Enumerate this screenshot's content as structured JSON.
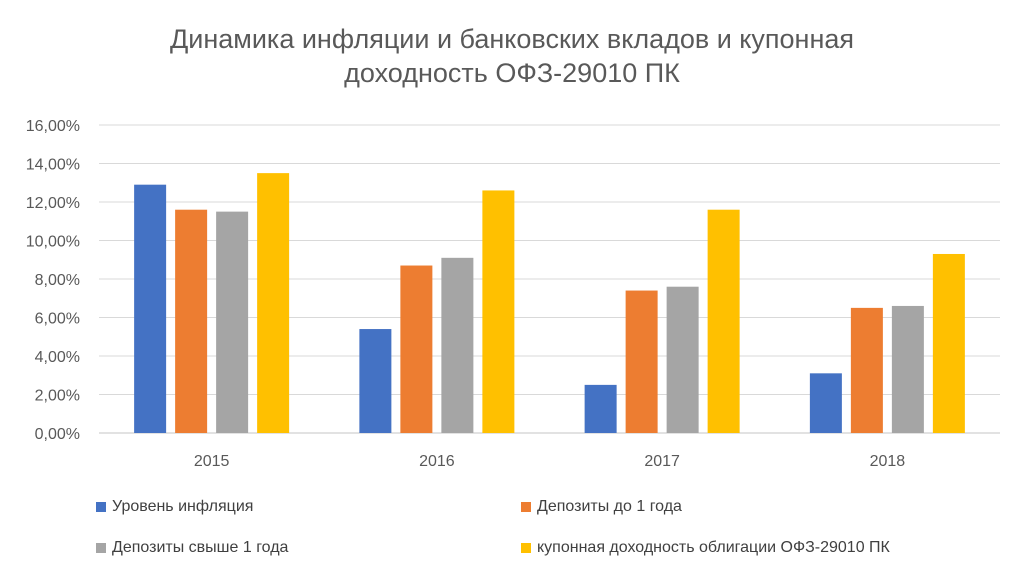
{
  "chart_data": {
    "type": "bar",
    "title": "Динамика инфляции и банковских вкладов и купонная доходность ОФЗ-29010 ПК",
    "title_lines": [
      "Динамика инфляции и банковских вкладов и купонная",
      "доходность ОФЗ-29010 ПК"
    ],
    "xlabel": "",
    "ylabel": "",
    "categories": [
      "2015",
      "2016",
      "2017",
      "2018"
    ],
    "ylim": [
      0,
      16
    ],
    "yticks": [
      "0,00%",
      "2,00%",
      "4,00%",
      "6,00%",
      "8,00%",
      "10,00%",
      "12,00%",
      "14,00%",
      "16,00%"
    ],
    "grid": true,
    "legend_position": "bottom",
    "series": [
      {
        "name": "Уровень инфляция",
        "color": "#4472C4",
        "values": [
          12.9,
          5.4,
          2.5,
          3.1
        ]
      },
      {
        "name": "Депозиты до 1 года",
        "color": "#ED7D31",
        "values": [
          11.6,
          8.7,
          7.4,
          6.5
        ]
      },
      {
        "name": "Депозиты свыше 1 года",
        "color": "#A5A5A5",
        "values": [
          11.5,
          9.1,
          7.6,
          6.6
        ]
      },
      {
        "name": "купонная доходность облигации ОФЗ-29010  ПК",
        "color": "#FFC000",
        "values": [
          13.5,
          12.6,
          11.6,
          9.3
        ]
      }
    ]
  }
}
